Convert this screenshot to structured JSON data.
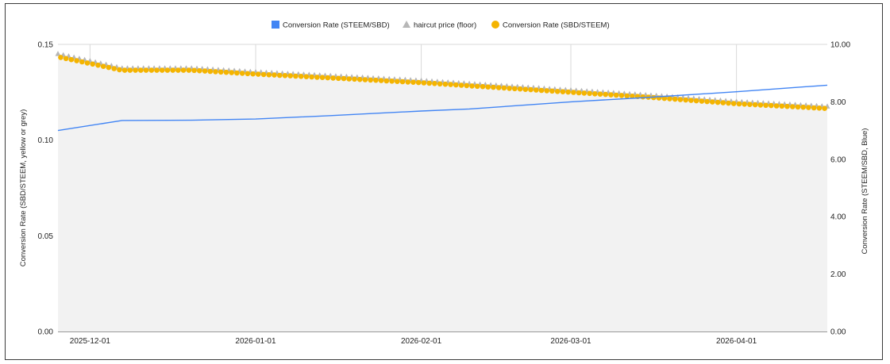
{
  "chart_data": {
    "type": "line",
    "x_start": "2025-11-25",
    "x_end": "2026-04-18",
    "x_ticks": [
      "2025-12-01",
      "2026-01-01",
      "2026-02-01",
      "2026-03-01",
      "2026-04-01"
    ],
    "ylabel_left": "Conversion Rate (SBD/STEEM, yellow or grey)",
    "ylabel_right": "Conversion Rate (STEEM/SBD, Blue)",
    "ylim_left": [
      0,
      0.15
    ],
    "ylim_right": [
      0,
      10
    ],
    "yticks_left": [
      "0.00",
      "0.05",
      "0.10",
      "0.15"
    ],
    "yticks_right": [
      "0.00",
      "2.00",
      "4.00",
      "6.00",
      "8.00",
      "10.00"
    ],
    "grid": true,
    "legend_position": "top",
    "series": [
      {
        "name": "Conversion Rate (STEEM/SBD)",
        "axis": "right",
        "color": "#4285f4",
        "style": "line",
        "points": [
          [
            "2025-11-25",
            7.0
          ],
          [
            "2025-12-07",
            7.35
          ],
          [
            "2025-12-20",
            7.36
          ],
          [
            "2026-01-01",
            7.4
          ],
          [
            "2026-01-15",
            7.52
          ],
          [
            "2026-02-01",
            7.68
          ],
          [
            "2026-02-10",
            7.75
          ],
          [
            "2026-02-20",
            7.88
          ],
          [
            "2026-03-01",
            8.0
          ],
          [
            "2026-03-15",
            8.15
          ],
          [
            "2026-04-01",
            8.35
          ],
          [
            "2026-04-18",
            8.58
          ]
        ]
      },
      {
        "name": "haircut price (floor)",
        "axis": "left",
        "color": "#b7b7b7",
        "style": "triangle-markers",
        "points": [
          [
            "2025-11-25",
            0.145
          ],
          [
            "2025-12-07",
            0.1375
          ],
          [
            "2025-12-20",
            0.1375
          ],
          [
            "2026-01-01",
            0.1355
          ],
          [
            "2026-01-15",
            0.1335
          ],
          [
            "2026-02-01",
            0.131
          ],
          [
            "2026-02-15",
            0.1285
          ],
          [
            "2026-03-01",
            0.126
          ],
          [
            "2026-03-15",
            0.1235
          ],
          [
            "2026-04-01",
            0.12
          ],
          [
            "2026-04-18",
            0.1175
          ]
        ]
      },
      {
        "name": "Conversion Rate (SBD/STEEM)",
        "axis": "left",
        "color": "#f4b400",
        "style": "area-with-markers",
        "points": [
          [
            "2025-11-25",
            0.1435
          ],
          [
            "2025-12-07",
            0.1365
          ],
          [
            "2025-12-20",
            0.1365
          ],
          [
            "2026-01-01",
            0.1345
          ],
          [
            "2026-01-15",
            0.1325
          ],
          [
            "2026-02-01",
            0.13
          ],
          [
            "2026-02-15",
            0.1275
          ],
          [
            "2026-03-01",
            0.125
          ],
          [
            "2026-03-15",
            0.1225
          ],
          [
            "2026-04-01",
            0.119
          ],
          [
            "2026-04-18",
            0.1165
          ]
        ]
      }
    ]
  }
}
